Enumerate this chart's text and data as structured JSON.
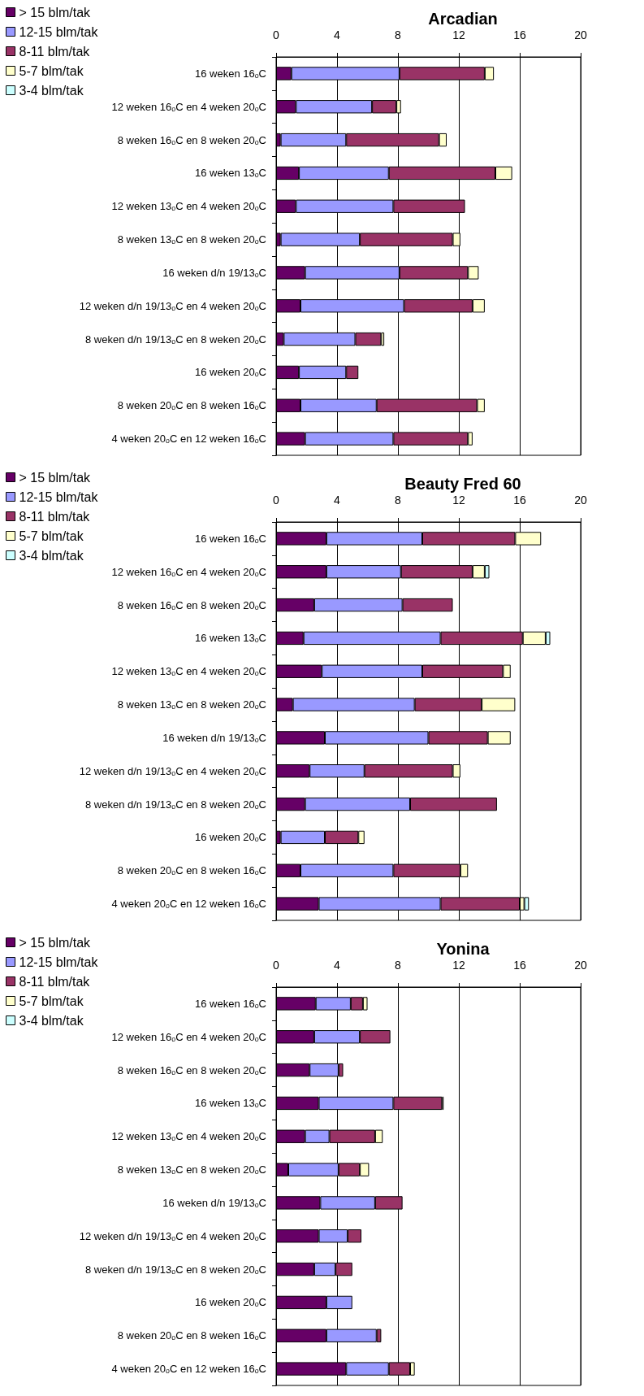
{
  "chart_data": [
    {
      "type": "bar",
      "orientation": "horizontal",
      "stacked": true,
      "title": "Arcadian",
      "grid": "x",
      "legend": "top left",
      "xlim": [
        0,
        20
      ],
      "xticks": [
        0,
        4,
        8,
        12,
        16,
        20
      ],
      "categories": [
        "16 weken 16ₒC",
        "12 weken 16ₒC en 4 weken 20ₒC",
        "8 weken 16ₒC en 8 weken 20ₒC",
        "16 weken 13ₒC",
        "12 weken 13ₒC en 4 weken 20ₒC",
        "8 weken 13ₒC en 8 weken 20ₒC",
        "16 weken d/n 19/13ₒC",
        "12 weken d/n 19/13ₒC en 4 weken 20ₒC",
        "8 weken d/n 19/13ₒC en 8 weken 20ₒC",
        "16 weken 20ₒC",
        "8 weken 20ₒC en 8 weken 16ₒC",
        "4 weken 20ₒC en 12 weken 16ₒC"
      ],
      "series": [
        {
          "name": "> 15 blm/tak",
          "color": "#660066",
          "values": [
            1.0,
            1.3,
            0.3,
            1.5,
            1.3,
            0.3,
            1.9,
            1.6,
            0.5,
            1.5,
            1.6,
            1.9
          ]
        },
        {
          "name": "12-15 blm/tak",
          "color": "#9999ff",
          "values": [
            7.1,
            5.0,
            4.3,
            5.9,
            6.4,
            5.2,
            6.2,
            6.8,
            4.7,
            3.1,
            5.0,
            5.8
          ]
        },
        {
          "name": "8-11 blm/tak",
          "color": "#993366",
          "values": [
            5.6,
            1.6,
            6.1,
            7.0,
            4.7,
            6.1,
            4.5,
            4.5,
            1.7,
            0.8,
            6.6,
            4.9
          ]
        },
        {
          "name": "5-7 blm/tak",
          "color": "#ffffcc",
          "values": [
            0.6,
            0.3,
            0.5,
            1.1,
            null,
            0.5,
            0.7,
            0.8,
            0.2,
            null,
            0.5,
            0.3
          ]
        },
        {
          "name": "3-4 blm/tak",
          "color": "#ccffff",
          "values": [
            null,
            null,
            null,
            null,
            null,
            null,
            null,
            null,
            null,
            null,
            null,
            null
          ]
        }
      ]
    },
    {
      "type": "bar",
      "orientation": "horizontal",
      "stacked": true,
      "title": "Beauty Fred 60",
      "grid": "x",
      "legend": "top left",
      "xlim": [
        0,
        20
      ],
      "xticks": [
        0,
        4,
        8,
        12,
        16,
        20
      ],
      "categories": [
        "16 weken 16ₒC",
        "12 weken 16ₒC en 4 weken 20ₒC",
        "8 weken 16ₒC en 8 weken 20ₒC",
        "16 weken 13ₒC",
        "12 weken 13ₒC en 4 weken 20ₒC",
        "8 weken 13ₒC en 8 weken 20ₒC",
        "16 weken d/n 19/13ₒC",
        "12 weken d/n 19/13ₒC en 4 weken 20ₒC",
        "8 weken d/n 19/13ₒC en 8 weken 20ₒC",
        "16 weken 20ₒC",
        "8 weken 20ₒC en 8 weken 16ₒC",
        "4 weken 20ₒC en 12 weken 16ₒC"
      ],
      "series": [
        {
          "name": "> 15 blm/tak",
          "color": "#660066",
          "values": [
            3.3,
            3.3,
            2.5,
            1.8,
            3.0,
            1.1,
            3.2,
            2.2,
            1.9,
            0.3,
            1.6,
            2.8
          ]
        },
        {
          "name": "12-15 blm/tak",
          "color": "#9999ff",
          "values": [
            6.3,
            4.9,
            5.8,
            9.0,
            6.6,
            8.0,
            6.8,
            3.6,
            6.9,
            2.9,
            6.1,
            8.0
          ]
        },
        {
          "name": "8-11 blm/tak",
          "color": "#993366",
          "values": [
            6.1,
            4.7,
            3.3,
            5.4,
            5.3,
            4.4,
            3.9,
            5.8,
            5.7,
            2.2,
            4.4,
            5.2
          ]
        },
        {
          "name": "5-7 blm/tak",
          "color": "#ffffcc",
          "values": [
            1.7,
            0.8,
            null,
            1.5,
            0.5,
            2.2,
            1.5,
            0.5,
            null,
            0.4,
            0.5,
            0.3
          ]
        },
        {
          "name": "3-4 blm/tak",
          "color": "#ccffff",
          "values": [
            null,
            0.3,
            null,
            0.3,
            null,
            null,
            null,
            null,
            null,
            null,
            null,
            0.3
          ]
        }
      ]
    },
    {
      "type": "bar",
      "orientation": "horizontal",
      "stacked": true,
      "title": "Yonina",
      "grid": "x",
      "legend": "top left",
      "xlim": [
        0,
        20
      ],
      "xticks": [
        0,
        4,
        8,
        12,
        16,
        20
      ],
      "categories": [
        "16 weken 16ₒC",
        "12 weken 16ₒC en 4 weken 20ₒC",
        "8 weken 16ₒC en 8 weken 20ₒC",
        "16 weken 13ₒC",
        "12 weken 13ₒC en 4 weken 20ₒC",
        "8 weken 13ₒC en 8 weken 20ₒC",
        "16 weken d/n 19/13ₒC",
        "12 weken d/n 19/13ₒC en 4 weken 20ₒC",
        "8 weken d/n 19/13ₒC en 8 weken 20ₒC",
        "16 weken 20ₒC",
        "8 weken 20ₒC en 8 weken 16ₒC",
        "4 weken 20ₒC en 12 weken 16ₒC"
      ],
      "series": [
        {
          "name": "> 15 blm/tak",
          "color": "#660066",
          "values": [
            2.6,
            2.5,
            2.2,
            2.8,
            1.9,
            0.8,
            2.9,
            2.8,
            2.5,
            3.3,
            3.3,
            4.6
          ]
        },
        {
          "name": "12-15 blm/tak",
          "color": "#9999ff",
          "values": [
            2.3,
            3.0,
            1.9,
            4.9,
            1.6,
            3.3,
            3.6,
            1.9,
            1.4,
            1.7,
            3.3,
            2.8
          ]
        },
        {
          "name": "8-11 blm/tak",
          "color": "#993366",
          "values": [
            0.8,
            2.0,
            0.3,
            3.2,
            3.0,
            1.4,
            1.8,
            0.9,
            1.1,
            null,
            0.3,
            1.4
          ]
        },
        {
          "name": "5-7 blm/tak",
          "color": "#ffffcc",
          "values": [
            0.3,
            null,
            null,
            0.1,
            0.5,
            0.6,
            null,
            null,
            null,
            null,
            null,
            0.3
          ]
        },
        {
          "name": "3-4 blm/tak",
          "color": "#ccffff",
          "values": [
            null,
            null,
            null,
            null,
            null,
            null,
            null,
            null,
            null,
            null,
            null,
            null
          ]
        }
      ]
    }
  ]
}
